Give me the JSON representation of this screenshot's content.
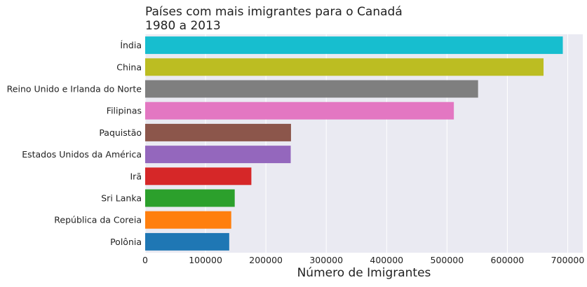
{
  "chart_data": {
    "type": "bar",
    "orientation": "horizontal",
    "title_lines": [
      "Países com mais imigrantes para o Canadá",
      "1980 a 2013"
    ],
    "xlabel": "Número de Imigrantes",
    "ylabel": "",
    "xlim": [
      0,
      725000
    ],
    "xticks": [
      0,
      100000,
      200000,
      300000,
      400000,
      500000,
      600000,
      700000
    ],
    "xtick_labels": [
      "0",
      "100000",
      "200000",
      "300000",
      "400000",
      "500000",
      "600000",
      "700000"
    ],
    "grid": true,
    "background": "#eaeaf2",
    "categories": [
      "Índia",
      "China",
      "Reino Unido e Irlanda do Norte",
      "Filipinas",
      "Paquistão",
      "Estados Unidos da América",
      "Irã",
      "Sri Lanka",
      "República da Coreia",
      "Polônia"
    ],
    "values": [
      691904,
      659962,
      551500,
      511391,
      241600,
      241122,
      175923,
      148358,
      142581,
      139241
    ],
    "colors": [
      "#17becf",
      "#bcbd22",
      "#7f7f7f",
      "#e377c2",
      "#8c564b",
      "#9467bd",
      "#d62728",
      "#2ca02c",
      "#ff7f0e",
      "#1f77b4"
    ]
  }
}
